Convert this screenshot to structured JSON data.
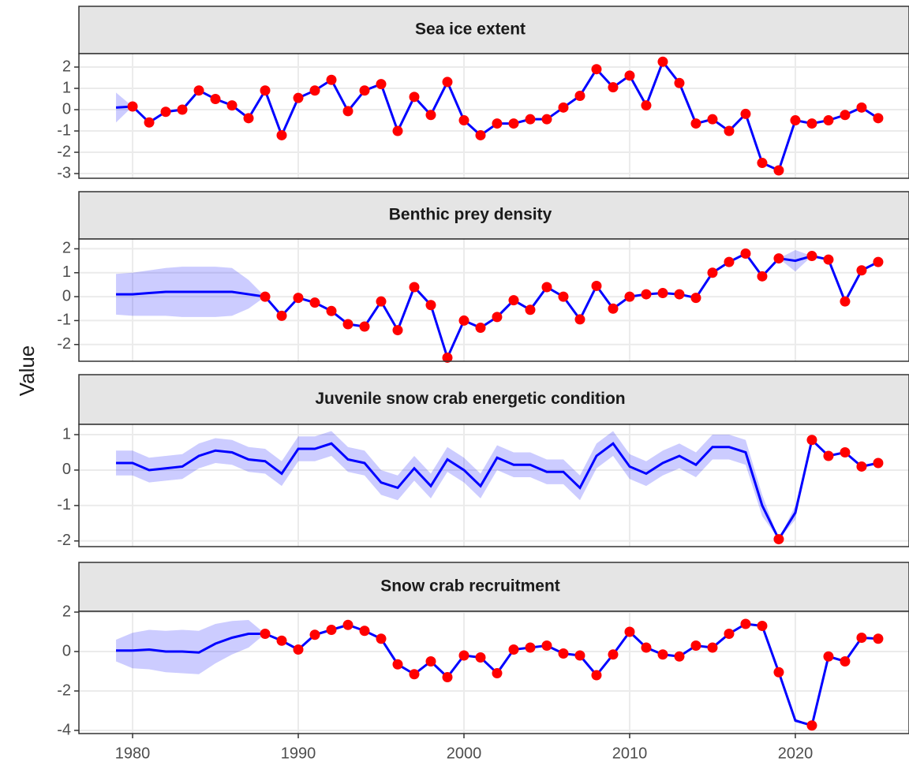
{
  "y_label": "Value",
  "chart_data": [
    {
      "type": "line",
      "title": "Sea ice extent",
      "x": [
        1979,
        1980,
        1981,
        1982,
        1983,
        1984,
        1985,
        1986,
        1987,
        1988,
        1989,
        1990,
        1991,
        1992,
        1993,
        1994,
        1995,
        1996,
        1997,
        1998,
        1999,
        2000,
        2001,
        2002,
        2003,
        2004,
        2005,
        2006,
        2007,
        2008,
        2009,
        2010,
        2011,
        2012,
        2013,
        2014,
        2015,
        2016,
        2017,
        2018,
        2019,
        2020,
        2021,
        2022,
        2023,
        2024,
        2025
      ],
      "estimate": [
        0.1,
        0.15,
        -0.6,
        -0.1,
        0,
        0.9,
        0.5,
        0.2,
        -0.4,
        0.9,
        -1.2,
        0.55,
        0.9,
        1.4,
        -0.07,
        0.9,
        1.2,
        -1.0,
        0.6,
        -0.25,
        1.3,
        -0.5,
        -1.2,
        -0.65,
        -0.65,
        -0.45,
        -0.45,
        0.1,
        0.65,
        1.9,
        1.05,
        1.6,
        0.2,
        2.25,
        1.25,
        -0.65,
        -0.45,
        -1.0,
        -0.2,
        -2.5,
        -2.85,
        -0.5,
        -0.65,
        -0.5,
        -0.25,
        0.1,
        -0.4
      ],
      "spread": [
        0.7,
        0,
        0,
        0,
        0,
        0,
        0,
        0,
        0,
        0,
        0,
        0,
        0,
        0,
        0,
        0,
        0,
        0,
        0,
        0,
        0,
        0,
        0,
        0,
        0,
        0,
        0,
        0,
        0,
        0,
        0,
        0,
        0,
        0,
        0,
        0,
        0,
        0,
        0,
        0,
        0,
        0,
        0,
        0,
        0,
        0,
        0
      ],
      "observed": [
        null,
        0.15,
        -0.6,
        -0.1,
        0,
        0.9,
        0.5,
        0.2,
        -0.4,
        0.9,
        -1.2,
        0.55,
        0.9,
        1.4,
        -0.07,
        0.9,
        1.2,
        -1.0,
        0.6,
        -0.25,
        1.3,
        -0.5,
        -1.2,
        -0.65,
        -0.65,
        -0.45,
        -0.45,
        0.1,
        0.65,
        1.9,
        1.05,
        1.6,
        0.2,
        2.25,
        1.25,
        -0.65,
        -0.45,
        -1.0,
        -0.2,
        -2.5,
        -2.85,
        -0.5,
        -0.65,
        -0.5,
        -0.25,
        0.1,
        -0.4
      ],
      "line_color": "#0000ff",
      "ribbon_color": "#0000ff",
      "point_color": "#ff0000",
      "xlim": [
        1976.76,
        2026.86
      ],
      "xticks": [
        1980,
        1990,
        2000,
        2010,
        2020
      ],
      "ylim": [
        -3.22,
        2.63
      ],
      "yticks": [
        -3,
        -2,
        -1,
        0,
        1,
        2
      ],
      "grid": true
    },
    {
      "type": "line",
      "title": "Benthic prey density",
      "x": [
        1979,
        1980,
        1981,
        1982,
        1983,
        1984,
        1985,
        1986,
        1987,
        1988,
        1989,
        1990,
        1991,
        1992,
        1993,
        1994,
        1995,
        1996,
        1997,
        1998,
        1999,
        2000,
        2001,
        2002,
        2003,
        2004,
        2005,
        2006,
        2007,
        2008,
        2009,
        2010,
        2011,
        2012,
        2013,
        2014,
        2015,
        2016,
        2017,
        2018,
        2019,
        2020,
        2021,
        2022,
        2023,
        2024,
        2025
      ],
      "estimate": [
        0.1,
        0.1,
        0.15,
        0.2,
        0.2,
        0.2,
        0.2,
        0.2,
        0.1,
        0,
        -0.8,
        -0.05,
        -0.25,
        -0.6,
        -1.15,
        -1.25,
        -0.2,
        -1.4,
        0.4,
        -0.35,
        -2.55,
        -1.0,
        -1.3,
        -0.85,
        -0.15,
        -0.55,
        0.4,
        0,
        -0.95,
        0.45,
        -0.5,
        0,
        0.1,
        0.15,
        0.1,
        -0.05,
        1.0,
        1.45,
        1.8,
        0.85,
        1.6,
        1.5,
        1.7,
        1.55,
        -0.2,
        1.1,
        1.45
      ],
      "spread": [
        0.85,
        0.9,
        0.95,
        1.0,
        1.05,
        1.05,
        1.05,
        1.0,
        0.6,
        0,
        0,
        0,
        0,
        0,
        0,
        0,
        0,
        0,
        0,
        0,
        0,
        0,
        0,
        0,
        0,
        0,
        0,
        0,
        0,
        0,
        0,
        0,
        0,
        0,
        0,
        0,
        0,
        0,
        0,
        0,
        0,
        0.45,
        0,
        0,
        0,
        0,
        0
      ],
      "observed": [
        null,
        null,
        null,
        null,
        null,
        null,
        null,
        null,
        null,
        0,
        -0.8,
        -0.05,
        -0.25,
        -0.6,
        -1.15,
        -1.25,
        -0.2,
        -1.4,
        0.4,
        -0.35,
        -2.55,
        -1.0,
        -1.3,
        -0.85,
        -0.15,
        -0.55,
        0.4,
        0,
        -0.95,
        0.45,
        -0.5,
        0,
        0.1,
        0.15,
        0.1,
        -0.05,
        1.0,
        1.45,
        1.8,
        0.85,
        1.6,
        null,
        1.7,
        1.55,
        -0.2,
        1.1,
        1.45
      ],
      "line_color": "#0000ff",
      "ribbon_color": "#0000ff",
      "point_color": "#ff0000",
      "xlim": [
        1976.76,
        2026.86
      ],
      "xticks": [
        1980,
        1990,
        2000,
        2010,
        2020
      ],
      "ylim": [
        -2.7,
        2.41
      ],
      "yticks": [
        -2,
        -1,
        0,
        1,
        2
      ],
      "grid": true
    },
    {
      "type": "line",
      "title": "Juvenile snow crab energetic condition",
      "x": [
        1979,
        1980,
        1981,
        1982,
        1983,
        1984,
        1985,
        1986,
        1987,
        1988,
        1989,
        1990,
        1991,
        1992,
        1993,
        1994,
        1995,
        1996,
        1997,
        1998,
        1999,
        2000,
        2001,
        2002,
        2003,
        2004,
        2005,
        2006,
        2007,
        2008,
        2009,
        2010,
        2011,
        2012,
        2013,
        2014,
        2015,
        2016,
        2017,
        2018,
        2019,
        2020,
        2021,
        2022,
        2023,
        2024,
        2025
      ],
      "estimate": [
        0.2,
        0.2,
        0,
        0.05,
        0.1,
        0.4,
        0.55,
        0.5,
        0.3,
        0.25,
        -0.1,
        0.6,
        0.6,
        0.75,
        0.3,
        0.2,
        -0.35,
        -0.5,
        0.05,
        -0.45,
        0.3,
        0,
        -0.45,
        0.35,
        0.15,
        0.15,
        -0.05,
        -0.05,
        -0.5,
        0.4,
        0.75,
        0.1,
        -0.1,
        0.2,
        0.4,
        0.15,
        0.65,
        0.65,
        0.5,
        -1.0,
        -1.95,
        -1.2,
        0.85,
        0.4,
        0.5,
        0.1,
        0.2
      ],
      "spread": [
        0.35,
        0.35,
        0.35,
        0.35,
        0.35,
        0.35,
        0.35,
        0.35,
        0.35,
        0.35,
        0.35,
        0.35,
        0.35,
        0.35,
        0.35,
        0.35,
        0.35,
        0.35,
        0.35,
        0.35,
        0.35,
        0.35,
        0.35,
        0.35,
        0.35,
        0.35,
        0.35,
        0.35,
        0.35,
        0.35,
        0.35,
        0.35,
        0.35,
        0.35,
        0.35,
        0.35,
        0.35,
        0.35,
        0.35,
        0.3,
        0,
        0.2,
        0,
        0,
        0,
        0,
        0
      ],
      "observed": [
        null,
        null,
        null,
        null,
        null,
        null,
        null,
        null,
        null,
        null,
        null,
        null,
        null,
        null,
        null,
        null,
        null,
        null,
        null,
        null,
        null,
        null,
        null,
        null,
        null,
        null,
        null,
        null,
        null,
        null,
        null,
        null,
        null,
        null,
        null,
        null,
        null,
        null,
        null,
        null,
        -1.95,
        null,
        0.85,
        0.4,
        0.5,
        0.1,
        0.2
      ],
      "line_color": "#0000ff",
      "ribbon_color": "#0000ff",
      "point_color": "#ff0000",
      "xlim": [
        1976.76,
        2026.86
      ],
      "xticks": [
        1980,
        1990,
        2000,
        2010,
        2020
      ],
      "ylim": [
        -2.16,
        1.29
      ],
      "yticks": [
        -2,
        -1,
        0,
        1
      ],
      "grid": true
    },
    {
      "type": "line",
      "title": "Snow crab recruitment",
      "x": [
        1979,
        1980,
        1981,
        1982,
        1983,
        1984,
        1985,
        1986,
        1987,
        1988,
        1989,
        1990,
        1991,
        1992,
        1993,
        1994,
        1995,
        1996,
        1997,
        1998,
        1999,
        2000,
        2001,
        2002,
        2003,
        2004,
        2005,
        2006,
        2007,
        2008,
        2009,
        2010,
        2011,
        2012,
        2013,
        2014,
        2015,
        2016,
        2017,
        2018,
        2019,
        2020,
        2021,
        2022,
        2023,
        2024,
        2025
      ],
      "estimate": [
        0.05,
        0.05,
        0.1,
        0,
        0,
        -0.05,
        0.4,
        0.7,
        0.9,
        0.9,
        0.55,
        0.1,
        0.85,
        1.1,
        1.35,
        1.05,
        0.65,
        -0.65,
        -1.15,
        -0.5,
        -1.3,
        -0.2,
        -0.3,
        -1.1,
        0.1,
        0.2,
        0.3,
        -0.1,
        -0.2,
        -1.2,
        -0.15,
        1.0,
        0.2,
        -0.15,
        -0.25,
        0.3,
        0.2,
        0.9,
        1.4,
        1.3,
        -1.05,
        -3.5,
        -3.75,
        -0.25,
        -0.5,
        0.7,
        0.65
      ],
      "spread": [
        0.55,
        0.9,
        1.0,
        1.05,
        1.1,
        1.1,
        1.0,
        0.85,
        0.7,
        0,
        0,
        0,
        0,
        0,
        0,
        0,
        0,
        0,
        0,
        0,
        0,
        0,
        0,
        0,
        0,
        0,
        0,
        0,
        0,
        0,
        0,
        0,
        0,
        0,
        0,
        0,
        0,
        0,
        0,
        0,
        0,
        0.1,
        0,
        0,
        0,
        0,
        0
      ],
      "observed": [
        null,
        null,
        null,
        null,
        null,
        null,
        null,
        null,
        null,
        0.9,
        0.55,
        0.1,
        0.85,
        1.1,
        1.35,
        1.05,
        0.65,
        -0.65,
        -1.15,
        -0.5,
        -1.3,
        -0.2,
        -0.3,
        -1.1,
        0.1,
        0.2,
        0.3,
        -0.1,
        -0.2,
        -1.2,
        -0.15,
        1.0,
        0.2,
        -0.15,
        -0.25,
        0.3,
        0.2,
        0.9,
        1.4,
        1.3,
        -1.05,
        null,
        -3.75,
        -0.25,
        -0.5,
        0.7,
        0.65
      ],
      "line_color": "#0000ff",
      "ribbon_color": "#0000ff",
      "point_color": "#ff0000",
      "xlim": [
        1976.76,
        2026.86
      ],
      "xticks": [
        1980,
        1990,
        2000,
        2010,
        2020
      ],
      "ylim": [
        -4.16,
        2.04
      ],
      "yticks": [
        -4,
        -2,
        0,
        2
      ],
      "grid": true
    }
  ]
}
